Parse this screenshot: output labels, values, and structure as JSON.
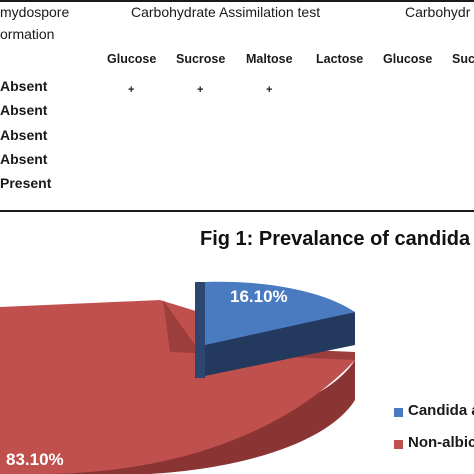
{
  "table": {
    "header_left_line1": "mydospore",
    "header_left_line2": "ormation",
    "group1": "Carbohydrate Assimilation test",
    "group2": "Carbohydr",
    "columns": [
      "Glucose",
      "Sucrose",
      "Maltose",
      "Lactose",
      "Glucose",
      "Suc"
    ],
    "rows": [
      {
        "label": "Absent",
        "marks": [
          "+",
          "+",
          "+"
        ]
      },
      {
        "label": "Absent",
        "marks": []
      },
      {
        "label": "Absent",
        "marks": []
      },
      {
        "label": "Absent",
        "marks": []
      },
      {
        "label": "Present",
        "marks": []
      }
    ]
  },
  "figure": {
    "title": "Fig 1: Prevalance of candida s",
    "legend": [
      {
        "label": "Candida a",
        "color": "#4a7ac0"
      },
      {
        "label": "Non-albica",
        "color": "#c0504d"
      }
    ]
  },
  "chart_data": {
    "type": "pie",
    "title": "Fig 1: Prevalance of candida s",
    "categories": [
      "Candida a",
      "Non-albica"
    ],
    "values": [
      16.1,
      83.1
    ],
    "labels": [
      "16.10%",
      "83.10%"
    ],
    "colors": [
      "#4a7ac0",
      "#c0504d"
    ],
    "legend_position": "right"
  }
}
